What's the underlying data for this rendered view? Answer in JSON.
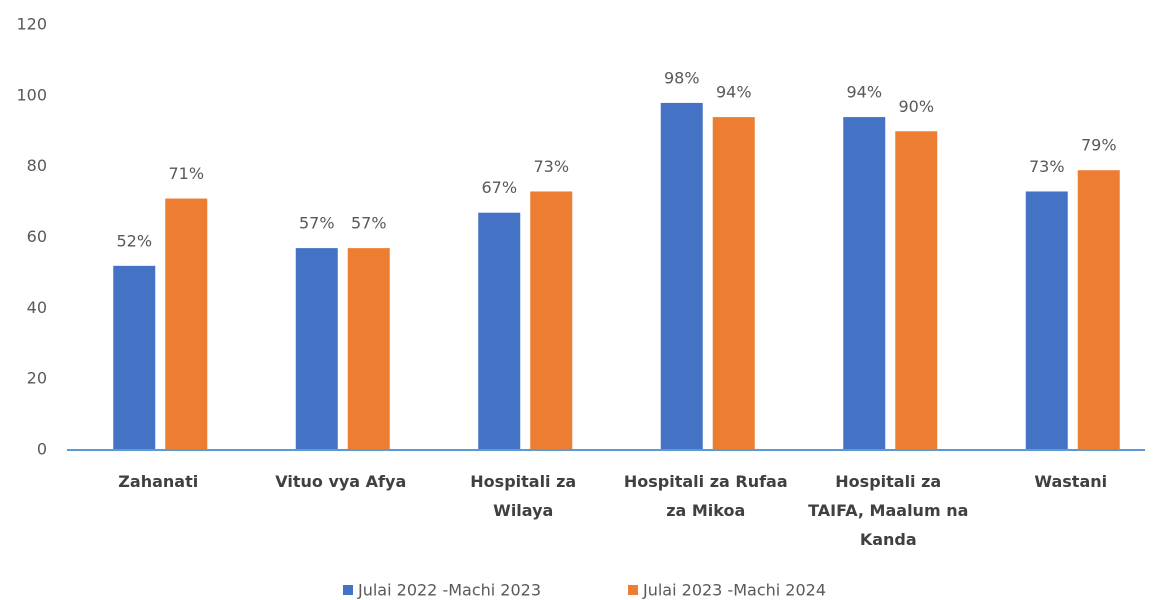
{
  "chart_data": {
    "type": "bar",
    "categories": [
      "Zahanati",
      "Vituo vya Afya",
      "Hospitali za Wilaya",
      "Hospitali za Rufaa za Mikoa",
      "Hospitali za TAIFA, Maalum na Kanda",
      "Wastani"
    ],
    "series": [
      {
        "name": "Julai 2022 -Machi 2023",
        "color": "#4472c4",
        "values": [
          52,
          57,
          67,
          98,
          94,
          73
        ],
        "value_labels": [
          "52%",
          "57%",
          "67%",
          "98%",
          "94%",
          "73%"
        ]
      },
      {
        "name": "Julai 2023 -Machi 2024",
        "color": "#ed7d31",
        "values": [
          71,
          57,
          73,
          94,
          90,
          79
        ],
        "value_labels": [
          "71%",
          "57%",
          "73%",
          "94%",
          "90%",
          "79%"
        ]
      }
    ],
    "ylim": [
      0,
      120
    ],
    "yticks": [
      0,
      20,
      40,
      60,
      80,
      100,
      120
    ],
    "grid": false,
    "legend": "bottom"
  }
}
